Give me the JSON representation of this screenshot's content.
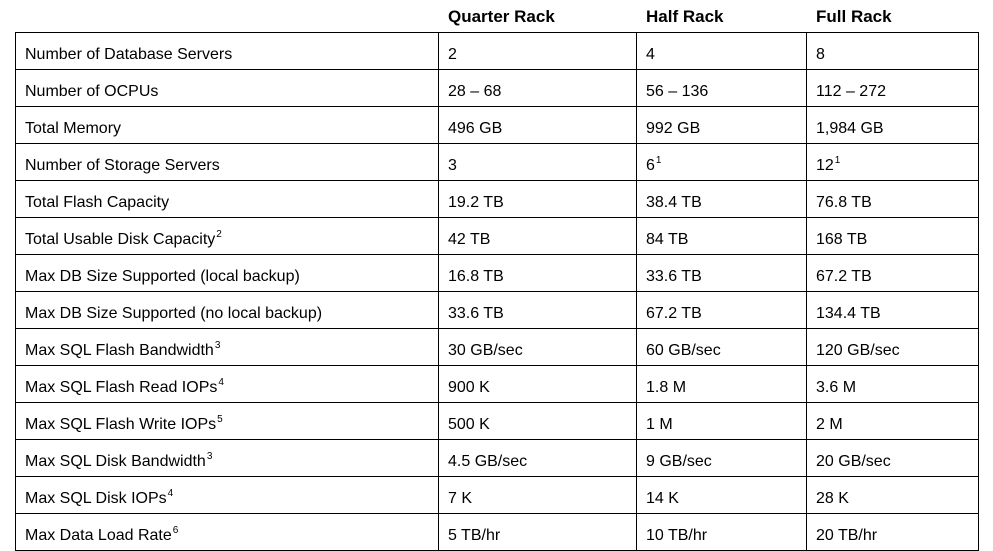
{
  "table": {
    "headers": [
      "",
      "Quarter Rack",
      "Half Rack",
      "Full Rack"
    ],
    "rows": [
      {
        "label": "Number of Database Servers",
        "label_sup": "",
        "values": [
          {
            "text": "2",
            "sup": ""
          },
          {
            "text": "4",
            "sup": ""
          },
          {
            "text": "8",
            "sup": ""
          }
        ]
      },
      {
        "label": "Number of OCPUs",
        "label_sup": "",
        "values": [
          {
            "text": "28 – 68",
            "sup": ""
          },
          {
            "text": "56 – 136",
            "sup": ""
          },
          {
            "text": "112 – 272",
            "sup": ""
          }
        ]
      },
      {
        "label": "Total Memory",
        "label_sup": "",
        "values": [
          {
            "text": "496 GB",
            "sup": ""
          },
          {
            "text": "992 GB",
            "sup": ""
          },
          {
            "text": "1,984 GB",
            "sup": ""
          }
        ]
      },
      {
        "label": "Number of Storage Servers",
        "label_sup": "",
        "values": [
          {
            "text": "3",
            "sup": ""
          },
          {
            "text": "6",
            "sup": "1"
          },
          {
            "text": "12",
            "sup": "1"
          }
        ]
      },
      {
        "label": "Total Flash Capacity",
        "label_sup": "",
        "values": [
          {
            "text": "19.2 TB",
            "sup": ""
          },
          {
            "text": "38.4 TB",
            "sup": ""
          },
          {
            "text": "76.8 TB",
            "sup": ""
          }
        ]
      },
      {
        "label": "Total Usable Disk Capacity",
        "label_sup": "2",
        "values": [
          {
            "text": "42 TB",
            "sup": ""
          },
          {
            "text": "84 TB",
            "sup": ""
          },
          {
            "text": "168 TB",
            "sup": ""
          }
        ]
      },
      {
        "label": "Max DB Size Supported (local backup)",
        "label_sup": "",
        "values": [
          {
            "text": "16.8 TB",
            "sup": ""
          },
          {
            "text": "33.6 TB",
            "sup": ""
          },
          {
            "text": "67.2 TB",
            "sup": ""
          }
        ]
      },
      {
        "label": "Max DB Size Supported (no local backup)",
        "label_sup": "",
        "values": [
          {
            "text": "33.6 TB",
            "sup": ""
          },
          {
            "text": "67.2 TB",
            "sup": ""
          },
          {
            "text": "134.4 TB",
            "sup": ""
          }
        ]
      },
      {
        "label": "Max SQL Flash Bandwidth",
        "label_sup": "3",
        "values": [
          {
            "text": "30 GB/sec",
            "sup": ""
          },
          {
            "text": "60 GB/sec",
            "sup": ""
          },
          {
            "text": "120 GB/sec",
            "sup": ""
          }
        ]
      },
      {
        "label": "Max SQL Flash Read IOPs",
        "label_sup": "4",
        "values": [
          {
            "text": "900 K",
            "sup": ""
          },
          {
            "text": "1.8 M",
            "sup": ""
          },
          {
            "text": "3.6 M",
            "sup": ""
          }
        ]
      },
      {
        "label": "Max SQL Flash Write IOPs",
        "label_sup": "5",
        "values": [
          {
            "text": "500 K",
            "sup": ""
          },
          {
            "text": "1 M",
            "sup": ""
          },
          {
            "text": "2 M",
            "sup": ""
          }
        ]
      },
      {
        "label": "Max SQL Disk Bandwidth",
        "label_sup": "3",
        "values": [
          {
            "text": "4.5 GB/sec",
            "sup": ""
          },
          {
            "text": "9 GB/sec",
            "sup": ""
          },
          {
            "text": "20 GB/sec",
            "sup": ""
          }
        ]
      },
      {
        "label": "Max SQL Disk IOPs",
        "label_sup": "4",
        "values": [
          {
            "text": "7 K",
            "sup": ""
          },
          {
            "text": "14 K",
            "sup": ""
          },
          {
            "text": "28 K",
            "sup": ""
          }
        ]
      },
      {
        "label": "Max Data Load Rate",
        "label_sup": "6",
        "values": [
          {
            "text": "5 TB/hr",
            "sup": ""
          },
          {
            "text": "10 TB/hr",
            "sup": ""
          },
          {
            "text": "20 TB/hr",
            "sup": ""
          }
        ]
      }
    ]
  }
}
